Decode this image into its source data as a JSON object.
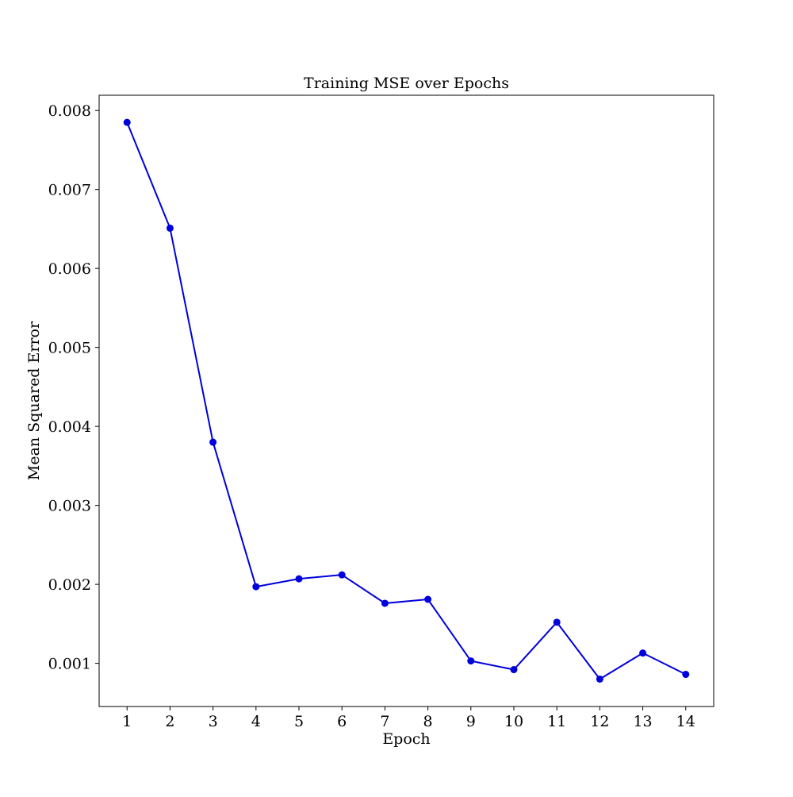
{
  "chart_data": {
    "type": "line",
    "title": "Training MSE over Epochs",
    "xlabel": "Epoch",
    "ylabel": "Mean Squared Error",
    "x": [
      1,
      2,
      3,
      4,
      5,
      6,
      7,
      8,
      9,
      10,
      11,
      12,
      13,
      14
    ],
    "series": [
      {
        "values": [
          0.00785,
          0.00651,
          0.0038,
          0.00197,
          0.00207,
          0.00212,
          0.00176,
          0.00181,
          0.00103,
          0.00092,
          0.00152,
          0.0008,
          0.00113,
          0.00086
        ],
        "color": "#0000dd",
        "marker": "circle"
      }
    ],
    "xticks": [
      "1",
      "2",
      "3",
      "4",
      "5",
      "6",
      "7",
      "8",
      "9",
      "10",
      "11",
      "12",
      "13",
      "14"
    ],
    "yticks": [
      "0.001",
      "0.002",
      "0.003",
      "0.004",
      "0.005",
      "0.006",
      "0.007",
      "0.008"
    ],
    "xlim": [
      0.35,
      14.65
    ],
    "ylim": [
      0.000453,
      0.008193
    ],
    "grid": false,
    "legend": "none"
  }
}
